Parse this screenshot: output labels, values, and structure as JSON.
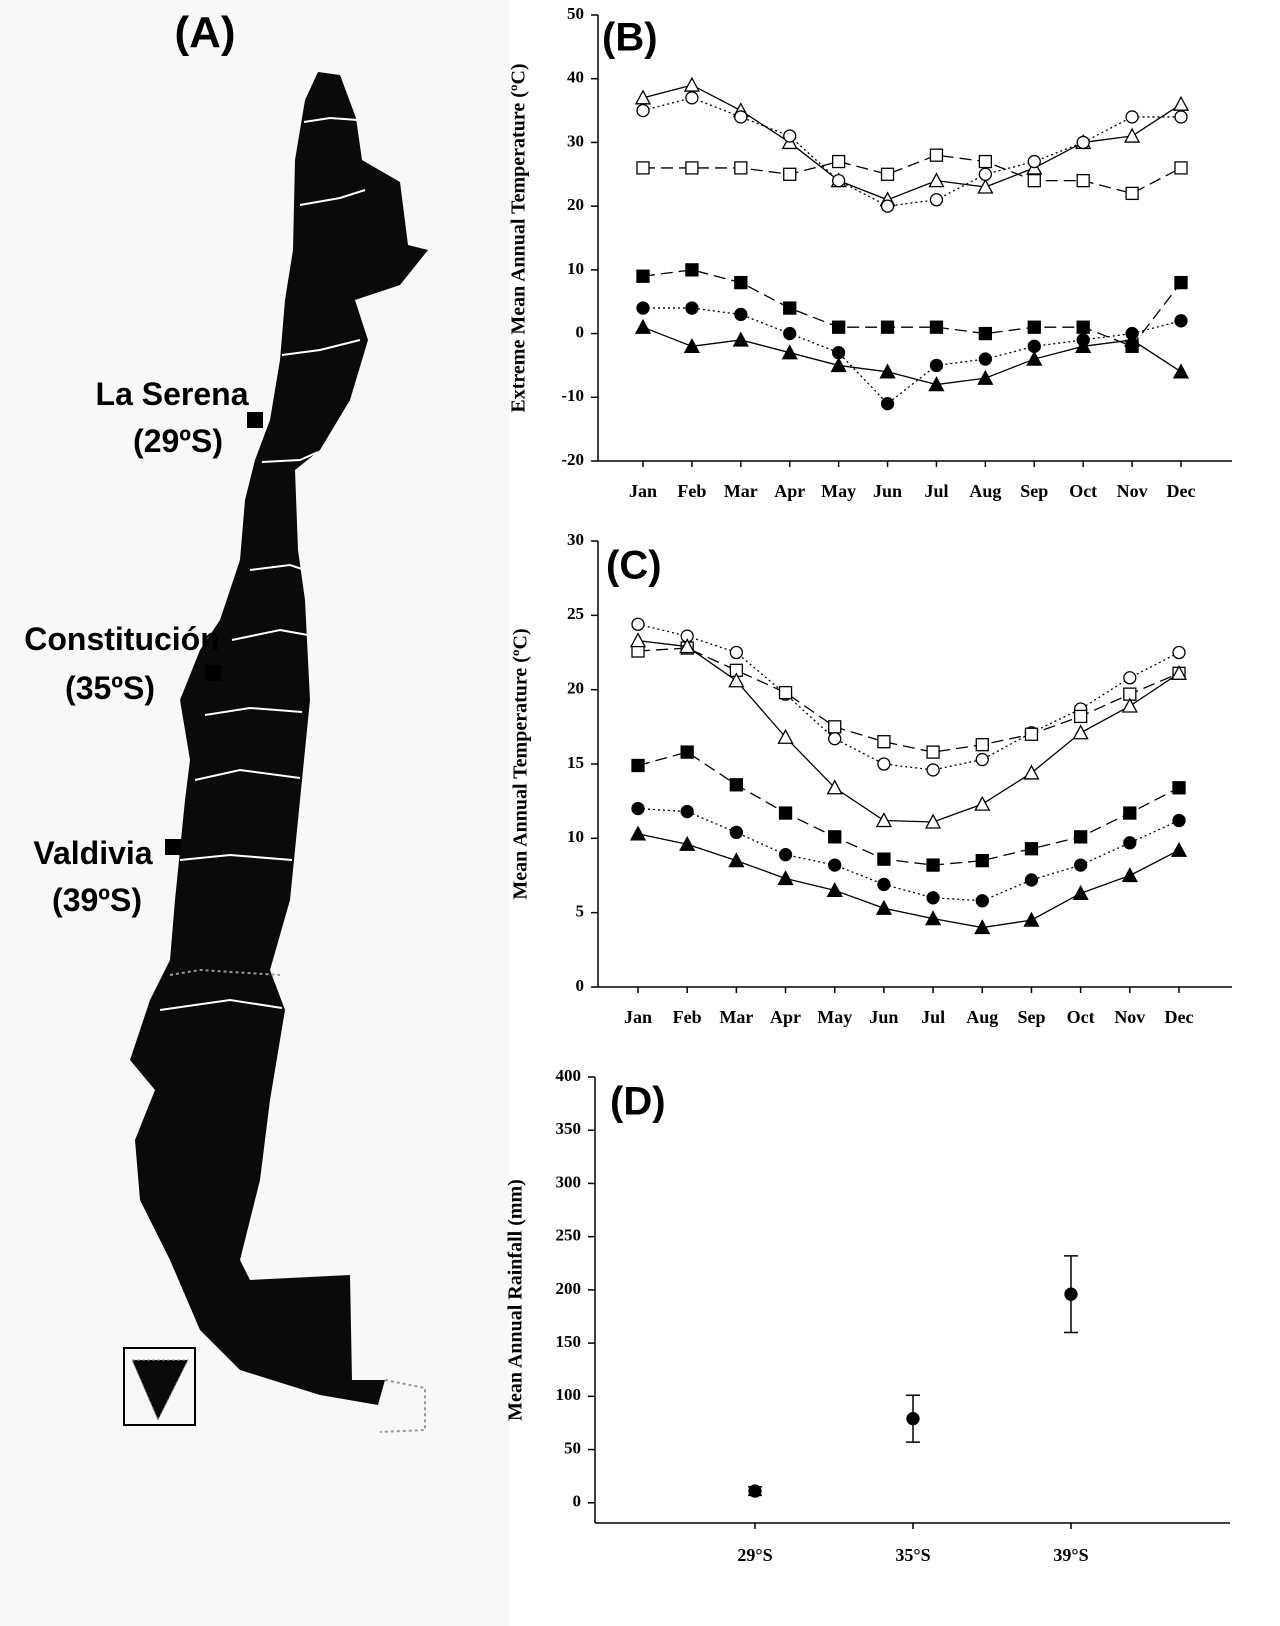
{
  "map": {
    "title": "(A)",
    "places": [
      {
        "name": "La Serena",
        "latitude": "(29ºS)"
      },
      {
        "name": "Constitución",
        "latitude": "(35ºS)"
      },
      {
        "name": "Valdivia",
        "latitude": "(39ºS)"
      }
    ]
  },
  "chart_data": [
    {
      "type": "line",
      "title": "(B)",
      "y_label": "Extreme Mean Annual Temperature (ºC)",
      "categories": [
        "Jan",
        "Feb",
        "Mar",
        "Apr",
        "May",
        "Jun",
        "Jul",
        "Aug",
        "Sep",
        "Oct",
        "Nov",
        "Dec"
      ],
      "ylim": [
        -20,
        50
      ],
      "yticks": [
        -20,
        -10,
        0,
        10,
        20,
        30,
        40,
        50
      ],
      "series": [
        {
          "color": "#000000",
          "marker": "triangle",
          "filled": false,
          "dash": "solid",
          "values": [
            37,
            39,
            35,
            30,
            24,
            21,
            24,
            23,
            26,
            30,
            31,
            36
          ]
        },
        {
          "color": "#000000",
          "marker": "circle",
          "filled": false,
          "dash": "dotted",
          "values": [
            35,
            37,
            34,
            31,
            24,
            20,
            21,
            25,
            27,
            30,
            34,
            34
          ]
        },
        {
          "color": "#000000",
          "marker": "square",
          "filled": false,
          "dash": "dashed",
          "values": [
            26,
            26,
            26,
            25,
            27,
            25,
            28,
            27,
            24,
            24,
            22,
            26
          ]
        },
        {
          "color": "#000000",
          "marker": "square",
          "filled": true,
          "dash": "dashed",
          "values": [
            9,
            10,
            8,
            4,
            1,
            1,
            1,
            0,
            1,
            1,
            -2,
            8
          ]
        },
        {
          "color": "#000000",
          "marker": "circle",
          "filled": true,
          "dash": "dotted",
          "values": [
            4,
            4,
            3,
            0,
            -3,
            -11,
            -5,
            -4,
            -2,
            -1,
            0,
            2
          ]
        },
        {
          "color": "#000000",
          "marker": "triangle",
          "filled": true,
          "dash": "solid",
          "values": [
            1,
            -2,
            -1,
            -3,
            -5,
            -6,
            -8,
            -7,
            -4,
            -2,
            -1,
            -6
          ]
        }
      ]
    },
    {
      "type": "line",
      "title": "(C)",
      "y_label": "Mean Annual Temperature (ºC)",
      "categories": [
        "Jan",
        "Feb",
        "Mar",
        "Apr",
        "May",
        "Jun",
        "Jul",
        "Aug",
        "Sep",
        "Oct",
        "Nov",
        "Dec"
      ],
      "ylim": [
        0,
        30
      ],
      "yticks": [
        0,
        5,
        10,
        15,
        20,
        25,
        30
      ],
      "series": [
        {
          "color": "#000000",
          "marker": "circle",
          "filled": false,
          "dash": "dotted",
          "values": [
            24.4,
            23.6,
            22.5,
            19.7,
            16.7,
            15.0,
            14.6,
            15.3,
            17.1,
            18.7,
            20.8,
            22.5
          ]
        },
        {
          "color": "#000000",
          "marker": "square",
          "filled": false,
          "dash": "dashed",
          "values": [
            22.6,
            22.8,
            21.3,
            19.8,
            17.5,
            16.5,
            15.8,
            16.3,
            17.0,
            18.2,
            19.7,
            21.1
          ]
        },
        {
          "color": "#000000",
          "marker": "triangle",
          "filled": false,
          "dash": "solid",
          "values": [
            23.3,
            22.9,
            20.6,
            16.8,
            13.4,
            11.2,
            11.1,
            12.3,
            14.4,
            17.1,
            18.9,
            21.1
          ]
        },
        {
          "color": "#000000",
          "marker": "square",
          "filled": true,
          "dash": "dashed",
          "values": [
            14.9,
            15.8,
            13.6,
            11.7,
            10.1,
            8.6,
            8.2,
            8.5,
            9.3,
            10.1,
            11.7,
            13.4
          ]
        },
        {
          "color": "#000000",
          "marker": "circle",
          "filled": true,
          "dash": "dotted",
          "values": [
            12.0,
            11.8,
            10.4,
            8.9,
            8.2,
            6.9,
            6.0,
            5.8,
            7.2,
            8.2,
            9.7,
            11.2
          ]
        },
        {
          "color": "#000000",
          "marker": "triangle",
          "filled": true,
          "dash": "solid",
          "values": [
            10.3,
            9.6,
            8.5,
            7.3,
            6.5,
            5.3,
            4.6,
            4.0,
            4.5,
            6.3,
            7.5,
            9.2
          ]
        }
      ]
    },
    {
      "type": "scatter",
      "title": "(D)",
      "y_label": "Mean Annual Rainfall (mm)",
      "categories": [
        "29°S",
        "35°S",
        "39°S"
      ],
      "ylim": [
        -19,
        400
      ],
      "yticks": [
        0,
        50,
        100,
        150,
        200,
        250,
        300,
        350,
        400
      ],
      "color": "#000000",
      "values": [
        11,
        79,
        196
      ],
      "errors": [
        4,
        22,
        36
      ]
    }
  ]
}
